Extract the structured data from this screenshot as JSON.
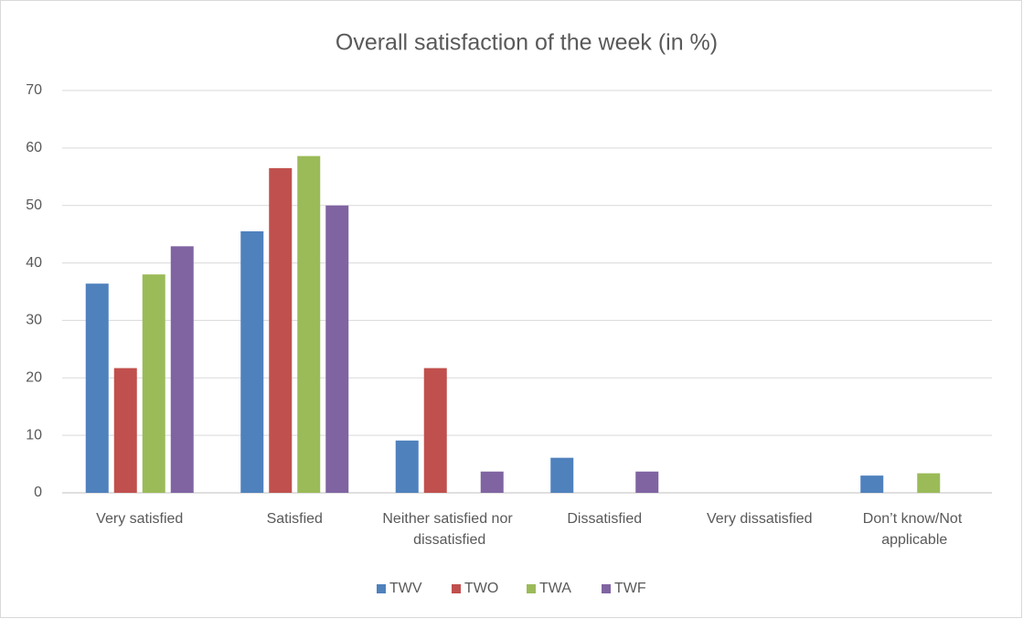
{
  "chart_data": {
    "type": "bar",
    "title": "Overall satisfaction of the week (in %)",
    "categories": [
      "Very satisfied",
      "Satisfied",
      "Neither satisfied nor dissatisfied",
      "Dissatisfied",
      "Very dissatisfied",
      "Don’t know/Not applicable"
    ],
    "series": [
      {
        "name": "TWV",
        "color": "#4f81bd",
        "values": [
          36.4,
          45.5,
          9.1,
          6.1,
          0,
          3.0
        ]
      },
      {
        "name": "TWO",
        "color": "#c0504d",
        "values": [
          21.7,
          56.5,
          21.7,
          0,
          0,
          0
        ]
      },
      {
        "name": "TWA",
        "color": "#9bbb59",
        "values": [
          38.0,
          58.6,
          0,
          0,
          0,
          3.4
        ]
      },
      {
        "name": "TWF",
        "color": "#8064a2",
        "values": [
          42.9,
          50.0,
          3.7,
          3.7,
          0,
          0
        ]
      }
    ],
    "ylim": [
      0,
      70
    ],
    "yticks": [
      0,
      10,
      20,
      30,
      40,
      50,
      60,
      70
    ],
    "grid": true,
    "legend": "bottom"
  }
}
